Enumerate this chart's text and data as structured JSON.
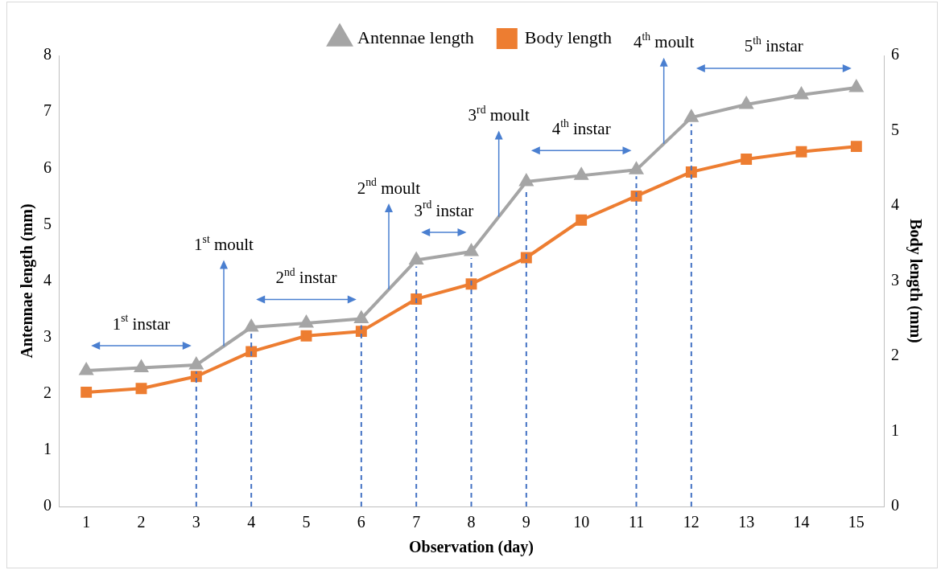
{
  "chart_data": {
    "type": "line",
    "xlabel": "Observation (day)",
    "ylabel": "Antennae length (mm)",
    "y2label": "Body length (mm)",
    "x": [
      1,
      2,
      3,
      4,
      5,
      6,
      7,
      8,
      9,
      10,
      11,
      12,
      13,
      14,
      15
    ],
    "xlim": [
      0.5,
      15.5
    ],
    "xticks": [
      1,
      2,
      3,
      4,
      5,
      6,
      7,
      8,
      9,
      10,
      11,
      12,
      13,
      14,
      15
    ],
    "ylim": [
      0,
      8
    ],
    "yticks": [
      0,
      1,
      2,
      3,
      4,
      5,
      6,
      7,
      8
    ],
    "y2lim": [
      0,
      6
    ],
    "y2ticks": [
      0,
      1,
      2,
      3,
      4,
      5,
      6
    ],
    "series": [
      {
        "name": "Antennae length",
        "color": "#a5a5a5",
        "marker": "triangle",
        "values": [
          2.41,
          2.46,
          2.51,
          3.18,
          3.25,
          3.33,
          4.37,
          4.52,
          5.76,
          5.87,
          5.97,
          6.9,
          7.13,
          7.3,
          7.43
        ]
      },
      {
        "name": "Body length",
        "color": "#ed7d31",
        "marker": "square",
        "axis": "y2",
        "values": [
          1.52,
          1.57,
          1.73,
          2.06,
          2.27,
          2.33,
          2.76,
          2.96,
          3.31,
          3.81,
          4.13,
          4.45,
          4.62,
          4.72,
          4.79
        ]
      }
    ],
    "ref_lines": [
      {
        "axis": "x",
        "value": 3,
        "color": "#4472c4",
        "line_style": "dashed"
      },
      {
        "axis": "x",
        "value": 4,
        "color": "#4472c4",
        "line_style": "dashed"
      },
      {
        "axis": "x",
        "value": 6,
        "color": "#4472c4",
        "line_style": "dashed"
      },
      {
        "axis": "x",
        "value": 7,
        "color": "#4472c4",
        "line_style": "dashed"
      },
      {
        "axis": "x",
        "value": 8,
        "color": "#4472c4",
        "line_style": "dashed"
      },
      {
        "axis": "x",
        "value": 9,
        "color": "#4472c4",
        "line_style": "dashed"
      },
      {
        "axis": "x",
        "value": 11,
        "color": "#4472c4",
        "line_style": "dashed"
      },
      {
        "axis": "x",
        "value": 12,
        "color": "#4472c4",
        "line_style": "dashed"
      }
    ],
    "annotations": [
      "1$^{st}$ instar",
      "1$^{st}$ moult",
      "2$^{nd}$ instar",
      "2$^{nd}$ moult",
      "3$^{rd}$ instar",
      "3$^{rd}$ moult",
      "4$^{th}$ instar",
      "4$^{th}$ moult",
      "5$^{th}$ instar"
    ],
    "legend": "top",
    "line_style": "solid",
    "grid": false
  }
}
